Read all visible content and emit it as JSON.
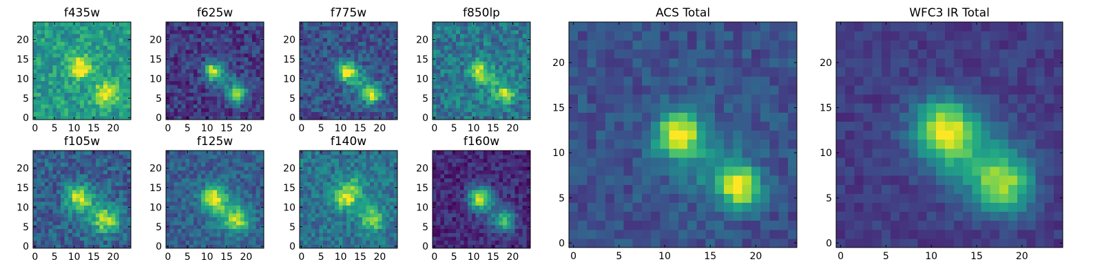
{
  "chart_data": {
    "type": "heatmap",
    "colormap": "viridis",
    "grid_size": 25,
    "panels": [
      {
        "id": "f435w",
        "title": "f435w",
        "xticks": [
          "0",
          "5",
          "10",
          "15",
          "20"
        ],
        "yticks": [
          "0",
          "5",
          "10",
          "15",
          "20"
        ],
        "blobs": [
          [
            11.5,
            13,
            2.0,
            0.55
          ],
          [
            18,
            6,
            2.0,
            0.5
          ]
        ],
        "background": 0.55,
        "noise": 0.3,
        "seed": 11
      },
      {
        "id": "f625w",
        "title": "f625w",
        "xticks": [
          "0",
          "5",
          "10",
          "15",
          "20"
        ],
        "yticks": [
          "0",
          "5",
          "10",
          "15",
          "20"
        ],
        "blobs": [
          [
            11.5,
            12,
            1.6,
            0.75
          ],
          [
            18,
            6,
            1.6,
            0.65
          ],
          [
            15,
            9,
            2.5,
            0.2
          ]
        ],
        "background": 0.18,
        "noise": 0.28,
        "seed": 12
      },
      {
        "id": "f775w",
        "title": "f775w",
        "xticks": [
          "0",
          "5",
          "10",
          "15",
          "20"
        ],
        "yticks": [
          "0",
          "5",
          "10",
          "15",
          "20"
        ],
        "blobs": [
          [
            11.5,
            12,
            1.7,
            0.75
          ],
          [
            18,
            6,
            1.6,
            0.7
          ],
          [
            15,
            9,
            2.5,
            0.25
          ]
        ],
        "background": 0.25,
        "noise": 0.28,
        "seed": 13
      },
      {
        "id": "f850lp",
        "title": "f850lp",
        "xticks": [
          "0",
          "5",
          "10",
          "15",
          "20"
        ],
        "yticks": [
          "0",
          "5",
          "10",
          "15",
          "20"
        ],
        "blobs": [
          [
            11.5,
            12,
            1.7,
            0.55
          ],
          [
            18,
            6,
            1.6,
            0.5
          ],
          [
            15,
            9,
            2.5,
            0.15
          ]
        ],
        "background": 0.4,
        "noise": 0.32,
        "seed": 14
      },
      {
        "id": "f105w",
        "title": "f105w",
        "xticks": [
          "0",
          "5",
          "10",
          "15",
          "20"
        ],
        "yticks": [
          "0",
          "5",
          "10",
          "15",
          "20"
        ],
        "blobs": [
          [
            11,
            12.5,
            2.2,
            0.6
          ],
          [
            18.5,
            6.5,
            2.4,
            0.5
          ],
          [
            15,
            9,
            3,
            0.2
          ]
        ],
        "background": 0.3,
        "noise": 0.3,
        "seed": 15
      },
      {
        "id": "f125w",
        "title": "f125w",
        "xticks": [
          "0",
          "5",
          "10",
          "15",
          "20"
        ],
        "yticks": [
          "0",
          "5",
          "10",
          "15",
          "20"
        ],
        "blobs": [
          [
            11.5,
            12.5,
            2.2,
            0.65
          ],
          [
            18,
            6.5,
            2.2,
            0.45
          ],
          [
            15,
            9,
            3,
            0.25
          ]
        ],
        "background": 0.3,
        "noise": 0.25,
        "seed": 16
      },
      {
        "id": "f140w",
        "title": "f140w",
        "xticks": [
          "0",
          "5",
          "10",
          "15",
          "20"
        ],
        "yticks": [
          "0",
          "5",
          "10",
          "15",
          "20"
        ],
        "blobs": [
          [
            11.5,
            12.5,
            2.2,
            0.55
          ],
          [
            18,
            7,
            2.2,
            0.45
          ],
          [
            14,
            16,
            2,
            0.2
          ]
        ],
        "background": 0.38,
        "noise": 0.28,
        "seed": 17
      },
      {
        "id": "f160w",
        "title": "f160w",
        "xticks": [
          "0",
          "5",
          "10",
          "15",
          "20"
        ],
        "yticks": [
          "0",
          "5",
          "10",
          "15",
          "20"
        ],
        "blobs": [
          [
            11.5,
            12.5,
            2.0,
            0.75
          ],
          [
            18,
            6.5,
            1.8,
            0.5
          ],
          [
            15,
            9,
            3,
            0.2
          ]
        ],
        "background": 0.12,
        "noise": 0.22,
        "seed": 18
      },
      {
        "id": "acs-total",
        "title": "ACS Total",
        "xticks": [
          "0",
          "5",
          "10",
          "15",
          "20"
        ],
        "yticks": [
          "0",
          "5",
          "10",
          "15",
          "20"
        ],
        "blobs": [
          [
            11.5,
            12,
            1.8,
            0.75
          ],
          [
            18.2,
            6.3,
            1.6,
            0.72
          ],
          [
            15,
            9,
            2.8,
            0.2
          ]
        ],
        "background": 0.25,
        "noise": 0.2,
        "seed": 21
      },
      {
        "id": "wfc3-ir-total",
        "title": "WFC3 IR Total",
        "xticks": [
          "0",
          "5",
          "10",
          "15",
          "20"
        ],
        "yticks": [
          "0",
          "5",
          "10",
          "15",
          "20"
        ],
        "blobs": [
          [
            11.5,
            12.5,
            2.4,
            0.75
          ],
          [
            18,
            6.5,
            2.2,
            0.6
          ],
          [
            15,
            9,
            3.2,
            0.25
          ]
        ],
        "background": 0.18,
        "noise": 0.14,
        "seed": 22
      }
    ]
  }
}
